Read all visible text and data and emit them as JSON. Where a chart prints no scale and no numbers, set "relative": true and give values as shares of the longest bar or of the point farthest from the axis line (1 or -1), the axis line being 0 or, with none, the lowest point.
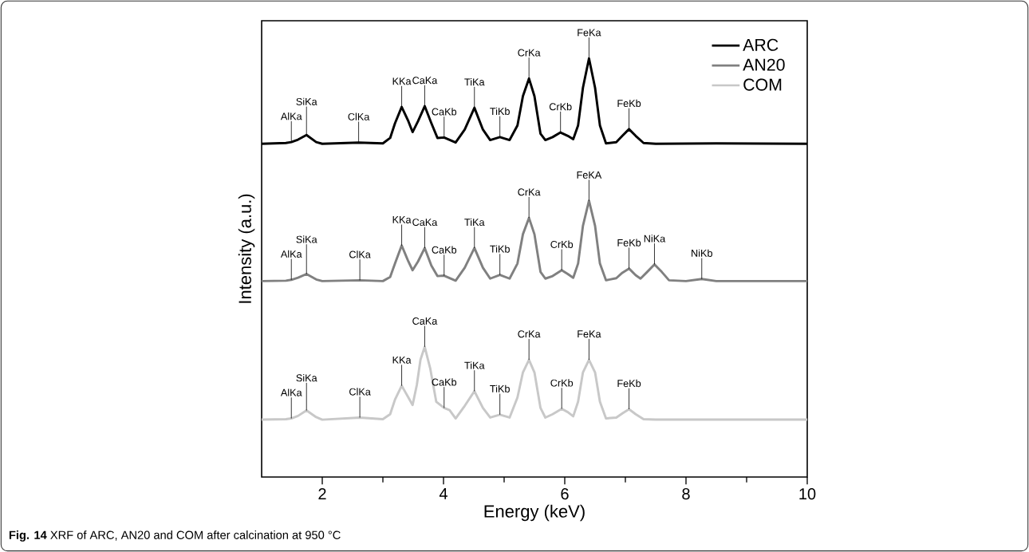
{
  "chart_data": {
    "type": "line",
    "relative": true,
    "xlabel": "Energy (keV)",
    "ylabel": "Intensity (a.u.)",
    "legend": "top right",
    "marker": "none",
    "line_style": "solid",
    "xlim": [
      1,
      10
    ],
    "xticks": [
      2,
      {
        "value": 3,
        "label": null
      },
      4,
      {
        "value": 5,
        "label": null
      },
      6,
      {
        "value": 7,
        "label": null
      },
      8,
      {
        "value": 9,
        "label": null
      },
      10
    ],
    "series": [
      {
        "name": "ARC",
        "color": "#000000",
        "x": [
          1.0,
          1.4,
          1.49,
          1.6,
          1.74,
          1.9,
          2.0,
          2.6,
          3.0,
          3.12,
          3.2,
          3.31,
          3.42,
          3.49,
          3.58,
          3.69,
          3.8,
          3.9,
          4.01,
          4.2,
          4.35,
          4.51,
          4.65,
          4.77,
          4.93,
          5.09,
          5.22,
          5.31,
          5.41,
          5.5,
          5.6,
          5.68,
          5.8,
          5.93,
          6.05,
          6.14,
          6.22,
          6.3,
          6.4,
          6.5,
          6.58,
          6.68,
          6.85,
          6.95,
          7.06,
          7.17,
          7.3,
          7.5,
          8.5,
          10
        ],
        "values": [
          0.796,
          0.798,
          0.8,
          0.806,
          0.817,
          0.8,
          0.796,
          0.799,
          0.797,
          0.81,
          0.845,
          0.884,
          0.85,
          0.824,
          0.85,
          0.886,
          0.845,
          0.81,
          0.811,
          0.799,
          0.83,
          0.882,
          0.83,
          0.805,
          0.812,
          0.805,
          0.84,
          0.91,
          0.952,
          0.91,
          0.82,
          0.805,
          0.812,
          0.823,
          0.815,
          0.807,
          0.84,
          0.93,
          1.0,
          0.93,
          0.84,
          0.797,
          0.8,
          0.815,
          0.831,
          0.815,
          0.798,
          0.796,
          0.797,
          0.796
        ]
      },
      {
        "name": "AN20",
        "color": "#808080",
        "x": [
          1.0,
          1.4,
          1.49,
          1.6,
          1.74,
          1.9,
          2.0,
          2.62,
          3.0,
          3.12,
          3.2,
          3.31,
          3.42,
          3.49,
          3.58,
          3.69,
          3.8,
          3.9,
          4.01,
          4.2,
          4.35,
          4.51,
          4.65,
          4.77,
          4.93,
          5.09,
          5.22,
          5.31,
          5.41,
          5.5,
          5.6,
          5.68,
          5.8,
          5.95,
          6.05,
          6.14,
          6.22,
          6.3,
          6.4,
          6.5,
          6.58,
          6.68,
          6.85,
          6.95,
          7.06,
          7.17,
          7.25,
          7.36,
          7.48,
          7.6,
          7.72,
          8.0,
          8.26,
          8.5,
          10
        ],
        "values": [
          0.468,
          0.469,
          0.471,
          0.476,
          0.485,
          0.472,
          0.468,
          0.47,
          0.468,
          0.478,
          0.51,
          0.553,
          0.515,
          0.494,
          0.515,
          0.547,
          0.505,
          0.48,
          0.481,
          0.469,
          0.5,
          0.547,
          0.5,
          0.474,
          0.483,
          0.474,
          0.51,
          0.58,
          0.619,
          0.58,
          0.49,
          0.474,
          0.48,
          0.494,
          0.485,
          0.476,
          0.51,
          0.6,
          0.66,
          0.6,
          0.51,
          0.47,
          0.475,
          0.488,
          0.498,
          0.482,
          0.474,
          0.49,
          0.508,
          0.49,
          0.47,
          0.468,
          0.473,
          0.468,
          0.468
        ]
      },
      {
        "name": "COM",
        "color": "#c8c8c8",
        "x": [
          1.0,
          1.4,
          1.49,
          1.6,
          1.74,
          1.9,
          2.0,
          2.62,
          3.0,
          3.12,
          3.2,
          3.31,
          3.42,
          3.49,
          3.56,
          3.62,
          3.69,
          3.78,
          3.88,
          4.01,
          4.1,
          4.2,
          4.35,
          4.51,
          4.65,
          4.77,
          4.93,
          5.09,
          5.22,
          5.31,
          5.41,
          5.5,
          5.6,
          5.68,
          5.8,
          5.95,
          6.05,
          6.14,
          6.22,
          6.3,
          6.4,
          6.5,
          6.58,
          6.68,
          6.85,
          6.95,
          7.06,
          7.17,
          7.3,
          7.5,
          8.5,
          10
        ],
        "values": [
          0.137,
          0.138,
          0.14,
          0.146,
          0.159,
          0.143,
          0.137,
          0.142,
          0.138,
          0.15,
          0.185,
          0.218,
          0.19,
          0.172,
          0.22,
          0.28,
          0.311,
          0.26,
          0.18,
          0.165,
          0.16,
          0.14,
          0.17,
          0.205,
          0.165,
          0.142,
          0.149,
          0.142,
          0.19,
          0.25,
          0.28,
          0.25,
          0.165,
          0.142,
          0.15,
          0.163,
          0.155,
          0.145,
          0.18,
          0.25,
          0.28,
          0.25,
          0.18,
          0.14,
          0.142,
          0.152,
          0.162,
          0.15,
          0.138,
          0.137,
          0.137,
          0.137
        ]
      }
    ],
    "annotations": [
      {
        "text": "AlKa",
        "x": 1.49,
        "y": 0.8
      },
      {
        "text": "SiKa",
        "x": 1.74,
        "y": 0.817
      },
      {
        "text": "ClKa",
        "x": 2.6,
        "y": 0.799
      },
      {
        "text": "KKa",
        "x": 3.31,
        "y": 0.884
      },
      {
        "text": "CaKa",
        "x": 3.69,
        "y": 0.886
      },
      {
        "text": "CaKb",
        "x": 4.01,
        "y": 0.811
      },
      {
        "text": "TiKa",
        "x": 4.51,
        "y": 0.882
      },
      {
        "text": "TiKb",
        "x": 4.93,
        "y": 0.812
      },
      {
        "text": "CrKa",
        "x": 5.41,
        "y": 0.952
      },
      {
        "text": "CrKb",
        "x": 5.93,
        "y": 0.823
      },
      {
        "text": "FeKa",
        "x": 6.4,
        "y": 1.0
      },
      {
        "text": "FeKb",
        "x": 7.06,
        "y": 0.831
      },
      {
        "text": "AlKa",
        "x": 1.49,
        "y": 0.471
      },
      {
        "text": "SiKa",
        "x": 1.74,
        "y": 0.485
      },
      {
        "text": "ClKa",
        "x": 2.62,
        "y": 0.47
      },
      {
        "text": "KKa",
        "x": 3.31,
        "y": 0.553
      },
      {
        "text": "CaKa",
        "x": 3.69,
        "y": 0.547
      },
      {
        "text": "CaKb",
        "x": 4.01,
        "y": 0.481
      },
      {
        "text": "TiKa",
        "x": 4.51,
        "y": 0.547
      },
      {
        "text": "TiKb",
        "x": 4.93,
        "y": 0.483
      },
      {
        "text": "CrKa",
        "x": 5.41,
        "y": 0.619
      },
      {
        "text": "CrKb",
        "x": 5.95,
        "y": 0.494
      },
      {
        "text": "FeKA",
        "x": 6.4,
        "y": 0.66
      },
      {
        "text": "FeKb",
        "x": 7.06,
        "y": 0.498
      },
      {
        "text": "NiKa",
        "x": 7.48,
        "y": 0.508
      },
      {
        "text": "NiKb",
        "x": 8.26,
        "y": 0.473
      },
      {
        "text": "AlKa",
        "x": 1.49,
        "y": 0.14
      },
      {
        "text": "SiKa",
        "x": 1.74,
        "y": 0.159
      },
      {
        "text": "ClKa",
        "x": 2.62,
        "y": 0.142
      },
      {
        "text": "KKa",
        "x": 3.31,
        "y": 0.218
      },
      {
        "text": "CaKa",
        "x": 3.69,
        "y": 0.311
      },
      {
        "text": "CaKb",
        "x": 4.01,
        "y": 0.165
      },
      {
        "text": "TiKa",
        "x": 4.51,
        "y": 0.205
      },
      {
        "text": "TiKb",
        "x": 4.93,
        "y": 0.149
      },
      {
        "text": "CrKa",
        "x": 5.41,
        "y": 0.28
      },
      {
        "text": "CrKb",
        "x": 5.95,
        "y": 0.163
      },
      {
        "text": "FeKa",
        "x": 6.4,
        "y": 0.28
      },
      {
        "text": "FeKb",
        "x": 7.06,
        "y": 0.162
      },
      "**Fig. 14** XRF of ARC, AN20 and COM after calcination at 950 °C"
    ]
  }
}
